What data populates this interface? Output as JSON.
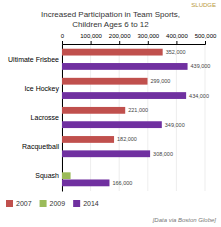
{
  "chart_data": {
    "type": "bar",
    "orientation": "horizontal",
    "title": [
      "Increased Participation in Team Sports,",
      "Children Ages 6 to 12"
    ],
    "subtitle": "SLUDGE",
    "annotations": [
      "[Data via Boston Globe]"
    ],
    "categories": [
      "Ultimate Frisbee",
      "Ice Hockey",
      "Lacrosse",
      "Racquetball",
      "Squash"
    ],
    "series": [
      {
        "name": "2007",
        "color": "#c0504d",
        "values": [
          352000,
          299000,
          221000,
          182000,
          0
        ],
        "value_labels": [
          "352,000",
          "299,000",
          "221,000",
          "182,000",
          null
        ]
      },
      {
        "name": "2009",
        "color": "#9bbb59",
        "values": [
          0,
          0,
          0,
          0,
          30000
        ]
      },
      {
        "name": "2014",
        "color": "#7030a0",
        "values": [
          439000,
          434000,
          349000,
          308000,
          166000
        ],
        "value_labels": [
          "439,000",
          "434,000",
          "349,000",
          "308,000",
          "166,000"
        ]
      }
    ],
    "xlim": [
      0,
      500000
    ],
    "xticks": [
      0,
      {
        "value": 100000,
        "label": "100,000"
      },
      {
        "value": 200000,
        "label": "200,000"
      },
      {
        "value": 300000,
        "label": "300,000"
      },
      {
        "value": 400000,
        "label": "400,000"
      },
      {
        "value": 500000,
        "label": "500,000"
      }
    ],
    "grid": true,
    "legend": "lower-left",
    "data_labels": true
  }
}
